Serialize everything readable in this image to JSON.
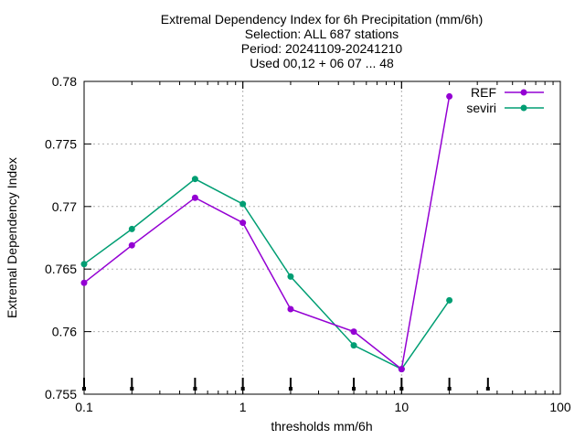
{
  "chart_data": {
    "type": "line",
    "title_lines": [
      "Extremal Dependency Index  for 6h Precipitation (mm/6h)",
      "Selection: ALL    687 stations",
      "Period: 20241109-20241210",
      "Used 00,12 + 06 07 ... 48"
    ],
    "xlabel": "thresholds mm/6h",
    "ylabel": "Extremal Dependency Index",
    "x_scale": "log",
    "xlim": [
      0.1,
      100
    ],
    "ylim": [
      0.755,
      0.78
    ],
    "x_ticks": [
      0.1,
      1,
      10,
      100
    ],
    "x_tick_labels": [
      "0.1",
      "1",
      "10",
      "100"
    ],
    "y_ticks": [
      0.755,
      0.76,
      0.765,
      0.77,
      0.775,
      0.78
    ],
    "y_tick_labels": [
      "0.755",
      "0.76",
      "0.765",
      "0.77",
      "0.775",
      "0.78"
    ],
    "grid": true,
    "legend_position": "top-right",
    "threshold_markers_x": [
      0.1,
      0.2,
      0.5,
      1,
      2,
      5,
      10,
      20,
      35
    ],
    "series": [
      {
        "name": "REF",
        "color": "#9400d3",
        "x": [
          0.1,
          0.2,
          0.5,
          1,
          2,
          5,
          10,
          20
        ],
        "values": [
          0.7639,
          0.7669,
          0.7707,
          0.7687,
          0.7618,
          0.76,
          0.757,
          0.7788
        ]
      },
      {
        "name": "seviri",
        "color": "#009e73",
        "x": [
          0.1,
          0.2,
          0.5,
          1,
          2,
          5,
          10,
          20
        ],
        "values": [
          0.7654,
          0.7682,
          0.7722,
          0.7702,
          0.7644,
          0.7589,
          0.757,
          0.7625
        ]
      }
    ]
  }
}
